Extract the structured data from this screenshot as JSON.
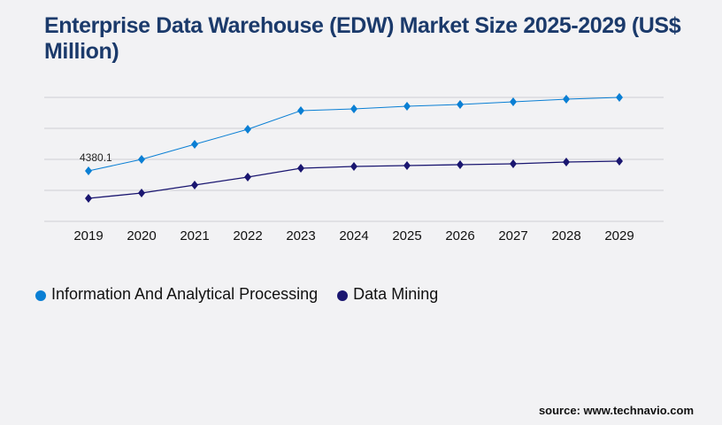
{
  "chart_data": {
    "type": "line",
    "title": "Enterprise Data Warehouse (EDW) Market Size 2025-2029 (US$ Million)",
    "categories": [
      "2019",
      "2020",
      "2021",
      "2022",
      "2023",
      "2024",
      "2025",
      "2026",
      "2027",
      "2028",
      "2029"
    ],
    "series": [
      {
        "name": "Information And Analytical Processing",
        "color": "#0a7fd4",
        "values": [
          4380.1,
          5379,
          6685,
          7991,
          9605,
          9759,
          9989,
          10143,
          10374,
          10604,
          10758
        ]
      },
      {
        "name": "Data Mining",
        "color": "#1a1670",
        "values": [
          1998,
          2459,
          3150,
          3842,
          4610,
          4764,
          4841,
          4918,
          4995,
          5148,
          5225
        ]
      }
    ],
    "data_labels": [
      {
        "series": 0,
        "index": 0,
        "text": "4380.1"
      }
    ],
    "ylim": [
      0,
      10758
    ],
    "grid": true,
    "marker": "diamond",
    "legend_position": "bottom-left"
  },
  "source": "source: www.technavio.com"
}
